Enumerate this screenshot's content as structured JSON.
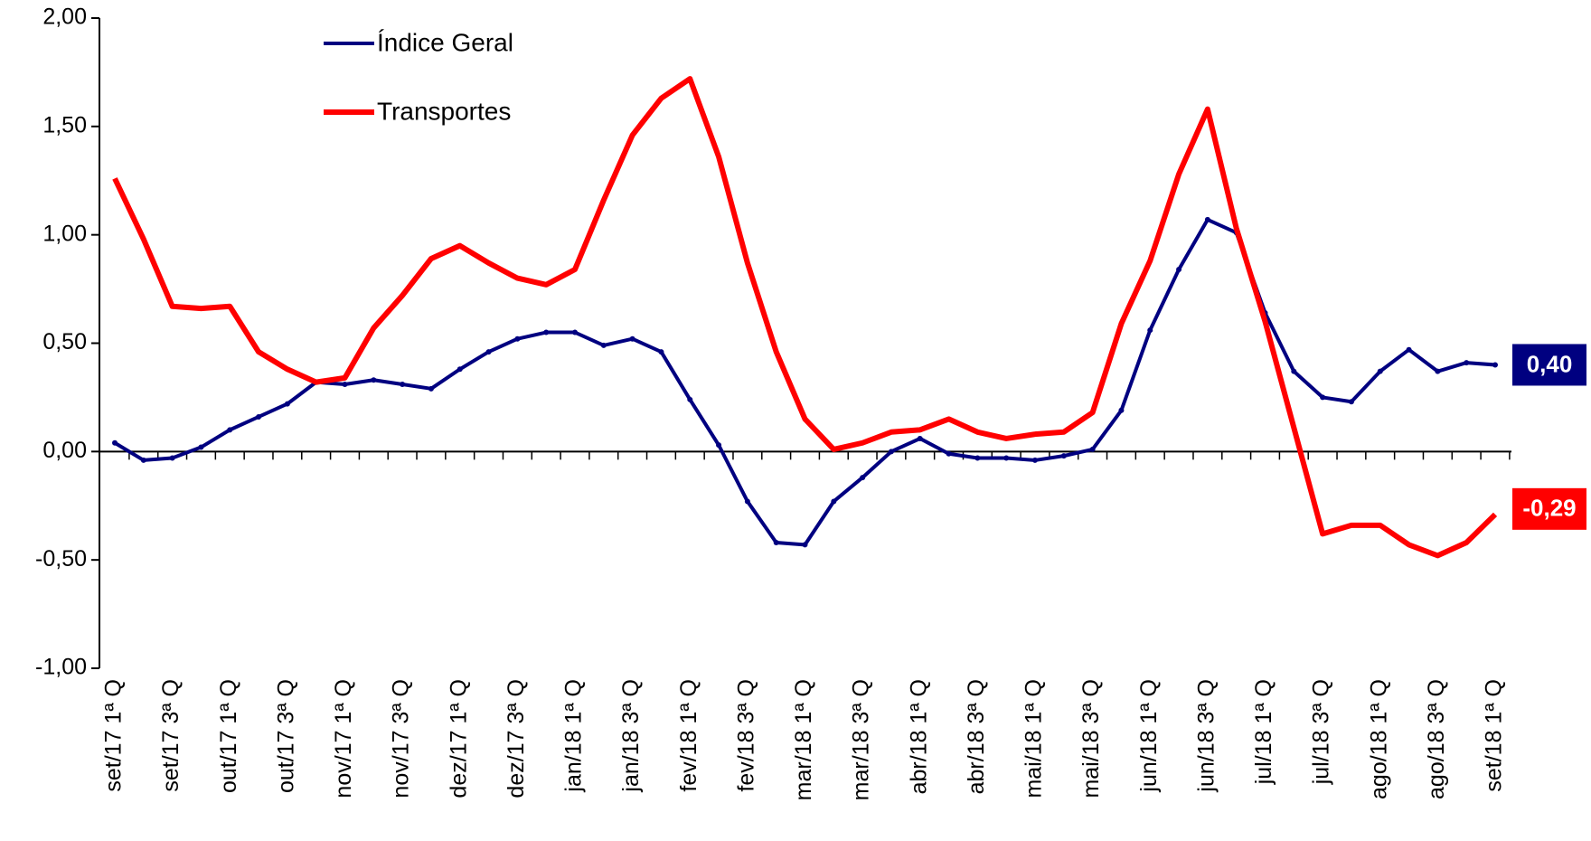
{
  "chart_data": {
    "type": "line",
    "categories": [
      "set/17 1ª Q",
      null,
      "set/17 3ª Q",
      null,
      "out/17 1ª Q",
      null,
      "out/17 3ª Q",
      null,
      "nov/17 1ª Q",
      null,
      "nov/17 3ª Q",
      null,
      "dez/17 1ª Q",
      null,
      "dez/17 3ª Q",
      null,
      "jan/18 1ª Q",
      null,
      "jan/18 3ª Q",
      null,
      "fev/18 1ª Q",
      null,
      "fev/18 3ª Q",
      null,
      "mar/18 1ª Q",
      null,
      "mar/18 3ª Q",
      null,
      "abr/18 1ª Q",
      null,
      "abr/18 3ª Q",
      null,
      "mai/18 1ª Q",
      null,
      "mai/18 3ª Q",
      null,
      "jun/18 1ª Q",
      null,
      "jun/18 3ª Q",
      null,
      "jul/18 1ª Q",
      null,
      "jul/18 3ª Q",
      null,
      "ago/18 1ª Q",
      null,
      "ago/18 3ª Q",
      null,
      "set/18 1ª Q"
    ],
    "series": [
      {
        "name": "Índice Geral",
        "color": "#000080",
        "values": [
          0.04,
          -0.04,
          -0.03,
          0.02,
          0.1,
          0.16,
          0.22,
          0.32,
          0.31,
          0.33,
          0.31,
          0.29,
          0.38,
          0.46,
          0.52,
          0.55,
          0.55,
          0.49,
          0.52,
          0.46,
          0.24,
          0.03,
          -0.23,
          -0.42,
          -0.43,
          -0.23,
          -0.12,
          0.0,
          0.06,
          -0.01,
          -0.03,
          -0.03,
          -0.04,
          -0.02,
          0.01,
          0.19,
          0.56,
          0.84,
          1.07,
          1.01,
          0.64,
          0.37,
          0.25,
          0.23,
          0.37,
          0.47,
          0.37,
          0.41,
          0.4
        ],
        "value_labels": [
          null,
          null,
          null,
          null,
          null,
          null,
          null,
          null,
          null,
          null,
          null,
          null,
          null,
          null,
          null,
          null,
          null,
          null,
          null,
          null,
          null,
          null,
          null,
          null,
          null,
          null,
          null,
          null,
          null,
          null,
          null,
          null,
          null,
          null,
          null,
          null,
          null,
          null,
          null,
          null,
          null,
          null,
          null,
          null,
          null,
          null,
          null,
          null,
          "0,40"
        ]
      },
      {
        "name": "Transportes",
        "color": "#ff0000",
        "values": [
          1.26,
          0.98,
          0.67,
          0.66,
          0.67,
          0.46,
          0.38,
          0.32,
          0.34,
          0.57,
          0.72,
          0.89,
          0.95,
          0.87,
          0.8,
          0.77,
          0.84,
          1.16,
          1.46,
          1.63,
          1.72,
          1.36,
          0.87,
          0.46,
          0.15,
          0.01,
          0.04,
          0.09,
          0.1,
          0.15,
          0.09,
          0.06,
          0.08,
          0.09,
          0.18,
          0.59,
          0.88,
          1.28,
          1.58,
          1.03,
          0.6,
          0.11,
          -0.38,
          -0.34,
          -0.34,
          -0.43,
          -0.48,
          -0.42,
          -0.29
        ],
        "value_labels": [
          null,
          null,
          null,
          null,
          null,
          null,
          null,
          null,
          null,
          null,
          null,
          null,
          null,
          null,
          null,
          null,
          null,
          null,
          null,
          null,
          null,
          null,
          null,
          null,
          null,
          null,
          null,
          null,
          null,
          null,
          null,
          null,
          null,
          null,
          null,
          null,
          null,
          null,
          null,
          null,
          null,
          null,
          null,
          null,
          null,
          null,
          null,
          null,
          "-0,29"
        ]
      }
    ],
    "ylim": [
      -1,
      2
    ],
    "yticks": [
      {
        "value": -1,
        "label": "-1,00"
      },
      {
        "value": -0.5,
        "label": "-0,50"
      },
      {
        "value": 0,
        "label": "0,00"
      },
      {
        "value": 0.5,
        "label": "0,50"
      },
      {
        "value": 1,
        "label": "1,00"
      },
      {
        "value": 1.5,
        "label": "1,50"
      },
      {
        "value": 2,
        "label": "2,00"
      }
    ],
    "legend": "top-left"
  }
}
